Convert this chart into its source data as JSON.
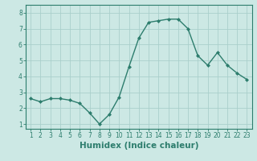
{
  "x": [
    1,
    2,
    3,
    4,
    5,
    6,
    7,
    8,
    9,
    10,
    11,
    12,
    13,
    14,
    15,
    16,
    17,
    18,
    19,
    20,
    21,
    22,
    23
  ],
  "y": [
    2.6,
    2.4,
    2.6,
    2.6,
    2.5,
    2.3,
    1.7,
    1.0,
    1.6,
    2.7,
    4.6,
    6.4,
    7.4,
    7.5,
    7.6,
    7.6,
    7.0,
    5.3,
    4.7,
    5.5,
    4.7,
    4.2,
    3.8
  ],
  "line_color": "#2d7d6d",
  "marker": "D",
  "marker_size": 2.0,
  "bg_color": "#cce8e4",
  "grid_color": "#aacfcb",
  "xlabel": "Humidex (Indice chaleur)",
  "xlabel_fontsize": 7.5,
  "xlim": [
    0.5,
    23.5
  ],
  "ylim": [
    0.7,
    8.5
  ],
  "yticks": [
    1,
    2,
    3,
    4,
    5,
    6,
    7,
    8
  ],
  "xticks": [
    1,
    2,
    3,
    4,
    5,
    6,
    7,
    8,
    9,
    10,
    11,
    12,
    13,
    14,
    15,
    16,
    17,
    18,
    19,
    20,
    21,
    22,
    23
  ],
  "tick_fontsize": 5.5,
  "spine_color": "#2d7d6d",
  "linewidth": 1.0
}
